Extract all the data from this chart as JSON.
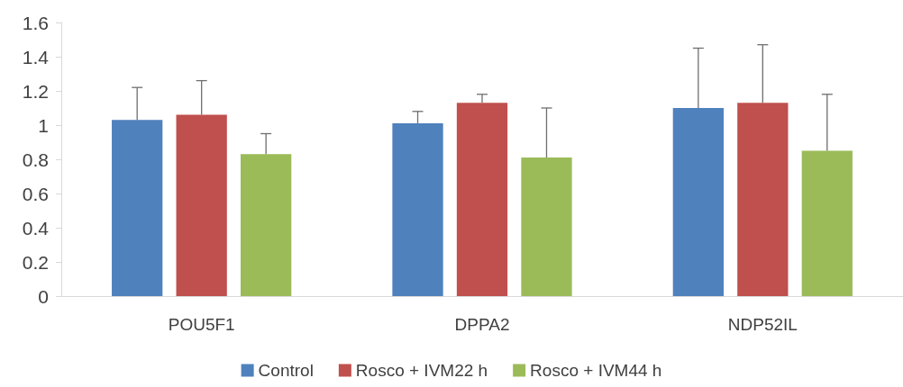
{
  "chart_data": {
    "type": "bar",
    "categories": [
      "POU5F1",
      "DPPA2",
      "NDP52IL"
    ],
    "series": [
      {
        "name": "Control",
        "color": "#4f81bd",
        "values": [
          1.03,
          1.01,
          1.1
        ],
        "errors": [
          [
            1.03,
            1.22
          ],
          [
            1.01,
            1.08
          ],
          [
            1.1,
            1.45
          ]
        ]
      },
      {
        "name": "Rosco + IVM22 h",
        "color": "#c0504d",
        "values": [
          1.06,
          1.13,
          1.13
        ],
        "errors": [
          [
            1.06,
            1.26
          ],
          [
            1.13,
            1.18
          ],
          [
            1.13,
            1.47
          ]
        ]
      },
      {
        "name": "Rosco + IVM44 h",
        "color": "#9bbb59",
        "values": [
          0.83,
          0.81,
          0.85
        ],
        "errors": [
          [
            0.83,
            0.95
          ],
          [
            0.81,
            1.1
          ],
          [
            0.85,
            1.18
          ]
        ]
      }
    ],
    "ylim": [
      0,
      1.6
    ],
    "yticks": [
      0,
      0.2,
      0.4,
      0.6,
      0.8,
      1,
      1.2,
      1.4,
      1.6
    ],
    "grid": false,
    "legend": "bottom"
  }
}
